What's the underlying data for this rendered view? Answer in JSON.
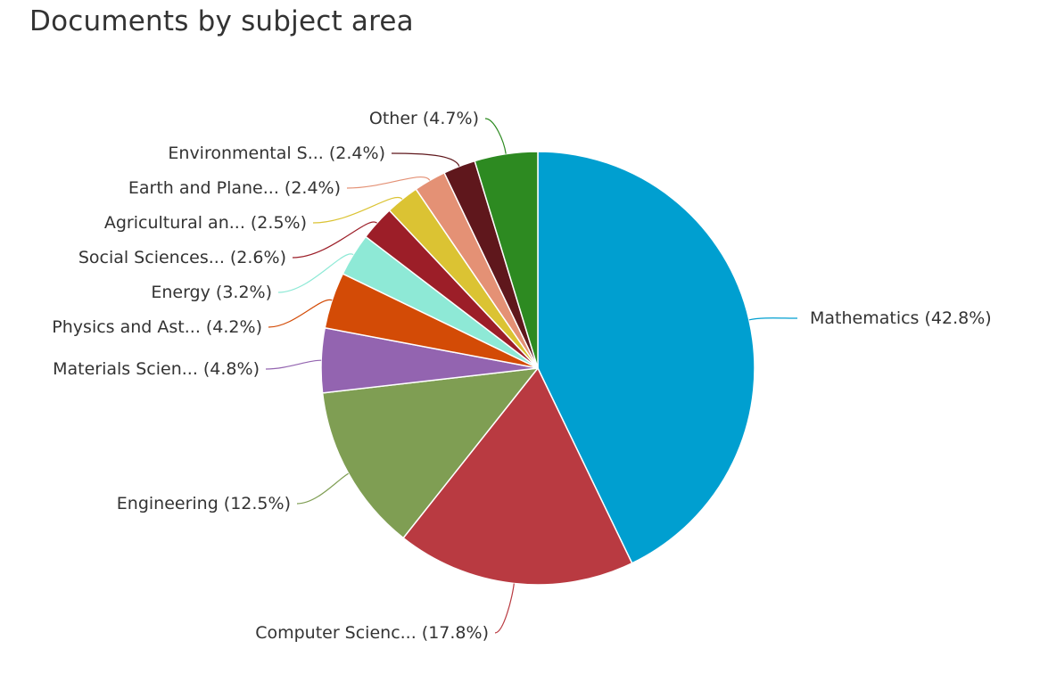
{
  "title": "Documents by subject area",
  "chart_data": {
    "type": "pie",
    "title": "Documents by subject area",
    "slices": [
      {
        "label": "Mathematics",
        "percent": 42.8,
        "display": "Mathematics (42.8%)",
        "color": "#009fd0"
      },
      {
        "label": "Computer Scienc...",
        "percent": 17.8,
        "display": "Computer Scienc... (17.8%)",
        "color": "#b93a41"
      },
      {
        "label": "Engineering",
        "percent": 12.5,
        "display": "Engineering (12.5%)",
        "color": "#7f9e53"
      },
      {
        "label": "Materials Scien...",
        "percent": 4.8,
        "display": "Materials Scien... (4.8%)",
        "color": "#9364b0"
      },
      {
        "label": "Physics and Ast...",
        "percent": 4.2,
        "display": "Physics and Ast... (4.2%)",
        "color": "#d34b06"
      },
      {
        "label": "Energy",
        "percent": 3.2,
        "display": "Energy (3.2%)",
        "color": "#8ee9d6"
      },
      {
        "label": "Social Sciences...",
        "percent": 2.6,
        "display": "Social Sciences... (2.6%)",
        "color": "#9c1e28"
      },
      {
        "label": "Agricultural an...",
        "percent": 2.5,
        "display": "Agricultural an... (2.5%)",
        "color": "#dbc333"
      },
      {
        "label": "Earth and Plane...",
        "percent": 2.4,
        "display": "Earth and Plane... (2.4%)",
        "color": "#e49175"
      },
      {
        "label": "Environmental S...",
        "percent": 2.4,
        "display": "Environmental S... (2.4%)",
        "color": "#5f171c"
      },
      {
        "label": "Other",
        "percent": 4.7,
        "display": "Other (4.7%)",
        "color": "#2d8a21"
      }
    ]
  }
}
